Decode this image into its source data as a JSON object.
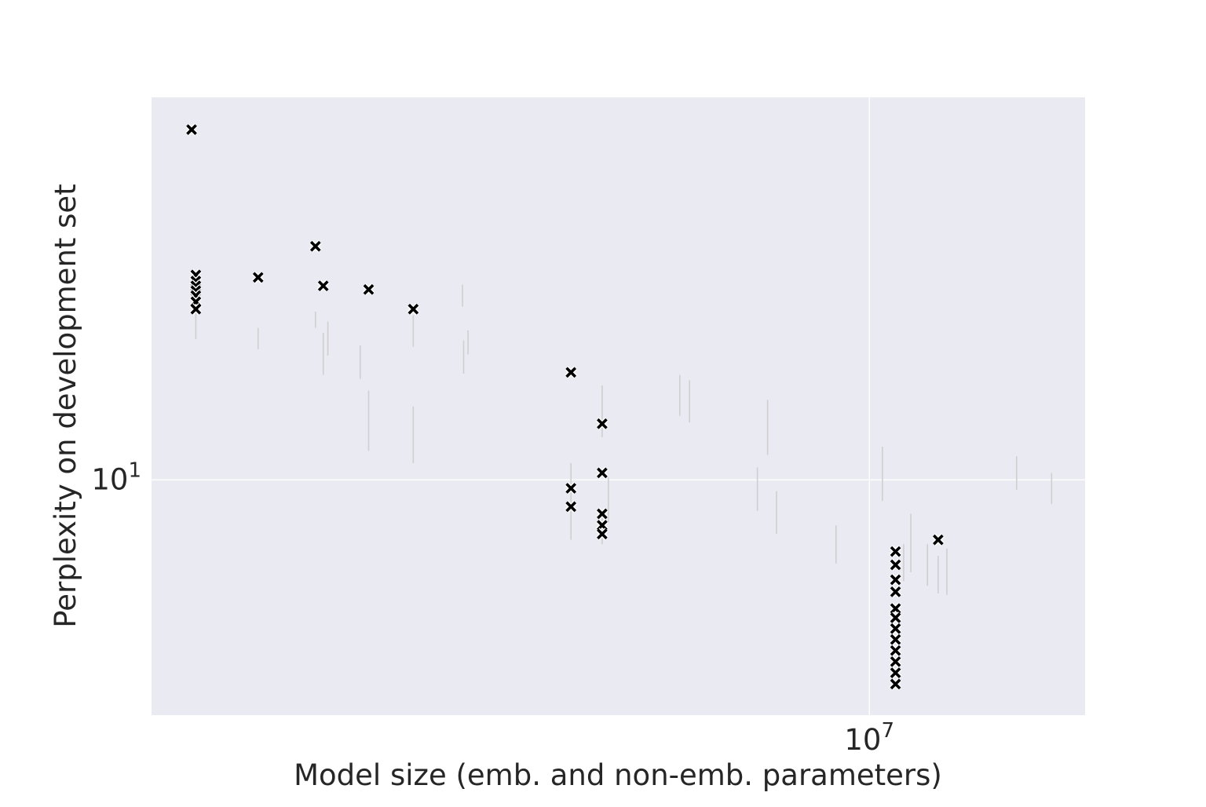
{
  "chart_data": {
    "type": "scatter",
    "title": "",
    "xlabel": "Model size (emb. and non-emb. parameters)",
    "ylabel": "Perplexity on development set",
    "x_scale": "log",
    "y_scale": "log",
    "xlim": [
      1780000,
      16800000
    ],
    "ylim": [
      8.45,
      13.15
    ],
    "x_ticks": [
      {
        "value": 10000000,
        "base": "10",
        "exp": "7"
      }
    ],
    "y_ticks": [
      {
        "value": 10,
        "base": "10",
        "exp": "1"
      }
    ],
    "grid": true,
    "legend": "none",
    "colors": {
      "background": "#eaeaf2",
      "grid": "#ffffff",
      "marker": "#000000",
      "marker_edge": "#ffffff",
      "faint_lines": "#cfcfcf",
      "text": "#262626"
    },
    "series": [
      {
        "marker": "x",
        "points": [
          {
            "x": 1960000,
            "y": 12.85
          },
          {
            "x": 1980000,
            "y": 11.58
          },
          {
            "x": 1980000,
            "y": 11.53
          },
          {
            "x": 1980000,
            "y": 11.49
          },
          {
            "x": 1980000,
            "y": 11.45
          },
          {
            "x": 1980000,
            "y": 11.41
          },
          {
            "x": 1980000,
            "y": 11.36
          },
          {
            "x": 1980000,
            "y": 11.3
          },
          {
            "x": 2300000,
            "y": 11.56
          },
          {
            "x": 2640000,
            "y": 11.82
          },
          {
            "x": 2690000,
            "y": 11.49
          },
          {
            "x": 3000000,
            "y": 11.46
          },
          {
            "x": 3340000,
            "y": 11.3
          },
          {
            "x": 4880000,
            "y": 10.8
          },
          {
            "x": 4880000,
            "y": 9.94
          },
          {
            "x": 4880000,
            "y": 9.81
          },
          {
            "x": 5260000,
            "y": 10.41
          },
          {
            "x": 5260000,
            "y": 10.05
          },
          {
            "x": 5260000,
            "y": 9.76
          },
          {
            "x": 5260000,
            "y": 9.68
          },
          {
            "x": 5260000,
            "y": 9.62
          },
          {
            "x": 10650000,
            "y": 9.5
          },
          {
            "x": 10650000,
            "y": 9.41
          },
          {
            "x": 10650000,
            "y": 9.31
          },
          {
            "x": 10650000,
            "y": 9.23
          },
          {
            "x": 10650000,
            "y": 9.12
          },
          {
            "x": 10650000,
            "y": 9.06
          },
          {
            "x": 10650000,
            "y": 8.99
          },
          {
            "x": 10650000,
            "y": 8.92
          },
          {
            "x": 10650000,
            "y": 8.85
          },
          {
            "x": 10650000,
            "y": 8.78
          },
          {
            "x": 10650000,
            "y": 8.71
          },
          {
            "x": 10650000,
            "y": 8.64
          },
          {
            "x": 11800000,
            "y": 9.58
          }
        ]
      },
      {
        "marker": "vertical-range",
        "ranges": [
          {
            "x": 1980000,
            "y_low": 11.06,
            "y_high": 11.27
          },
          {
            "x": 2300000,
            "y_low": 10.98,
            "y_high": 11.15
          },
          {
            "x": 2640000,
            "y_low": 11.15,
            "y_high": 11.28
          },
          {
            "x": 2690000,
            "y_low": 10.78,
            "y_high": 11.11
          },
          {
            "x": 2720000,
            "y_low": 10.93,
            "y_high": 11.2
          },
          {
            "x": 2940000,
            "y_low": 10.75,
            "y_high": 11.01
          },
          {
            "x": 3000000,
            "y_low": 10.21,
            "y_high": 10.66
          },
          {
            "x": 3340000,
            "y_low": 10.12,
            "y_high": 10.54
          },
          {
            "x": 3340000,
            "y_low": 11.0,
            "y_high": 11.25
          },
          {
            "x": 3760000,
            "y_low": 11.32,
            "y_high": 11.5
          },
          {
            "x": 3770000,
            "y_low": 10.79,
            "y_high": 11.05
          },
          {
            "x": 3810000,
            "y_low": 10.94,
            "y_high": 11.13
          },
          {
            "x": 4880000,
            "y_low": 9.58,
            "y_high": 10.12
          },
          {
            "x": 5260000,
            "y_low": 9.55,
            "y_high": 9.76
          },
          {
            "x": 5260000,
            "y_low": 10.31,
            "y_high": 10.7
          },
          {
            "x": 5340000,
            "y_low": 9.7,
            "y_high": 10.02
          },
          {
            "x": 6340000,
            "y_low": 10.47,
            "y_high": 10.78
          },
          {
            "x": 6490000,
            "y_low": 10.42,
            "y_high": 10.74
          },
          {
            "x": 7640000,
            "y_low": 9.78,
            "y_high": 10.09
          },
          {
            "x": 7830000,
            "y_low": 10.18,
            "y_high": 10.59
          },
          {
            "x": 8000000,
            "y_low": 9.62,
            "y_high": 9.92
          },
          {
            "x": 9230000,
            "y_low": 9.42,
            "y_high": 9.68
          },
          {
            "x": 10320000,
            "y_low": 9.85,
            "y_high": 10.24
          },
          {
            "x": 10860000,
            "y_low": 9.3,
            "y_high": 9.55
          },
          {
            "x": 11050000,
            "y_low": 9.36,
            "y_high": 9.76
          },
          {
            "x": 11500000,
            "y_low": 9.27,
            "y_high": 9.55
          },
          {
            "x": 11800000,
            "y_low": 9.22,
            "y_high": 9.47
          },
          {
            "x": 12050000,
            "y_low": 9.21,
            "y_high": 9.52
          },
          {
            "x": 14250000,
            "y_low": 9.93,
            "y_high": 10.17
          },
          {
            "x": 15500000,
            "y_low": 9.83,
            "y_high": 10.05
          }
        ]
      }
    ]
  }
}
